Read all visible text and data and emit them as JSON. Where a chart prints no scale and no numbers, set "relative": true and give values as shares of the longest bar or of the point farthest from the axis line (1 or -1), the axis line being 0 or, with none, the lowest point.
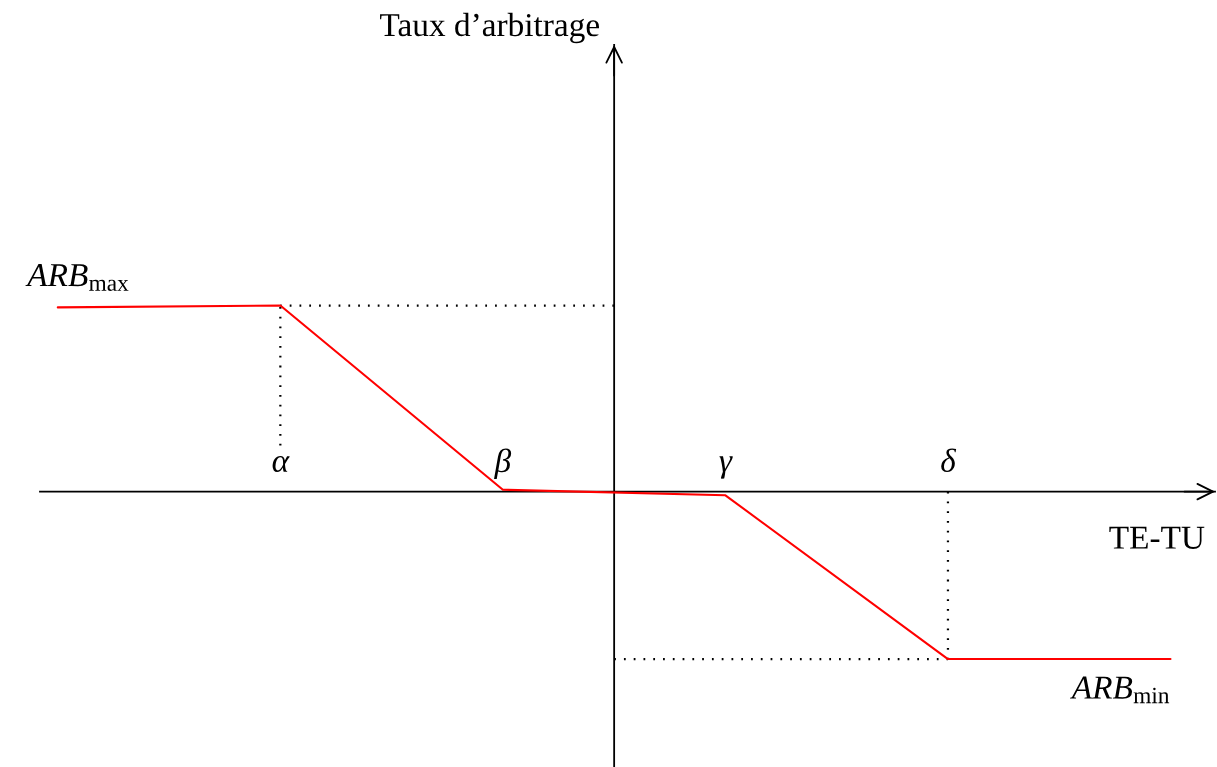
{
  "chart_data": {
    "type": "line",
    "relative": true,
    "xlabel": "TE-TU",
    "categories": [
      null,
      "α",
      "β",
      "γ",
      "δ",
      null
    ],
    "series": [
      {
        "color": "#ff0000",
        "values": [
          0.99,
          1,
          0.01,
          -0.02,
          -0.9,
          -0.9
        ]
      }
    ],
    "ref_lines": [
      {
        "axis": "y",
        "value": 1,
        "line_style": "dotted",
        "color": "#000000"
      },
      {
        "axis": "x",
        "value": "α",
        "line_style": "dotted",
        "color": "#000000"
      },
      {
        "axis": "y",
        "value": -0.9,
        "line_style": "dotted",
        "color": "#000000"
      },
      {
        "axis": "x",
        "value": "δ",
        "line_style": "dotted",
        "color": "#000000"
      }
    ],
    "annotations": [
      "Taux d’arbitrage",
      {
        "text": "ARB$_{max}$",
        "y": 0.99
      },
      {
        "text": "ARB$_{min}$",
        "y": -0.9
      }
    ]
  }
}
